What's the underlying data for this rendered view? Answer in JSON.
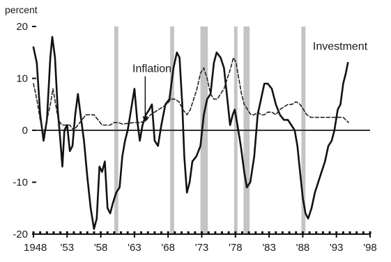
{
  "chart_data": {
    "type": "line",
    "ylabel": "percent",
    "ylim": [
      -20,
      20
    ],
    "yticks": [
      20,
      10,
      0,
      -10,
      -20
    ],
    "ytick_labels": [
      "20",
      "10",
      "0",
      "-10",
      "-20"
    ],
    "xlim": [
      1948,
      1998
    ],
    "xticks": [
      1948,
      1953,
      1958,
      1963,
      1968,
      1973,
      1978,
      1983,
      1988,
      1993,
      1998
    ],
    "xtick_labels": [
      "1948",
      "'53",
      "'58",
      "'63",
      "'68",
      "'73",
      "'78",
      "'83",
      "'88",
      "'93",
      "'98"
    ],
    "zero_line": true,
    "recession_bands": [
      [
        1960.0,
        1960.6
      ],
      [
        1968.3,
        1968.9
      ],
      [
        1972.8,
        1973.9
      ],
      [
        1977.8,
        1978.3
      ],
      [
        1979.2,
        1980.1
      ],
      [
        1987.8,
        1988.4
      ]
    ],
    "annotations": [
      {
        "text": "Inflation",
        "x": 1962.7,
        "y": 11.2,
        "arrow_to": [
          1964.6,
          1.6
        ]
      },
      {
        "text": "Investment",
        "x": 1989.5,
        "y": 15.5
      }
    ],
    "series": [
      {
        "name": "Investment",
        "color": "#111111",
        "style": "solid",
        "points": [
          [
            1948.0,
            16
          ],
          [
            1948.5,
            13
          ],
          [
            1949.0,
            3
          ],
          [
            1949.5,
            -2
          ],
          [
            1950.0,
            2
          ],
          [
            1950.5,
            14
          ],
          [
            1950.8,
            18
          ],
          [
            1951.2,
            14
          ],
          [
            1951.6,
            4
          ],
          [
            1952.0,
            -2
          ],
          [
            1952.3,
            -7
          ],
          [
            1952.6,
            0
          ],
          [
            1953.0,
            1
          ],
          [
            1953.4,
            -4
          ],
          [
            1953.8,
            -3
          ],
          [
            1954.2,
            3
          ],
          [
            1954.6,
            7
          ],
          [
            1955.0,
            3
          ],
          [
            1955.5,
            -2
          ],
          [
            1956.0,
            -9
          ],
          [
            1956.5,
            -15
          ],
          [
            1957.0,
            -19
          ],
          [
            1957.4,
            -17
          ],
          [
            1957.8,
            -7
          ],
          [
            1958.2,
            -8
          ],
          [
            1958.6,
            -6
          ],
          [
            1959.0,
            -15
          ],
          [
            1959.4,
            -16
          ],
          [
            1959.8,
            -14
          ],
          [
            1960.3,
            -12
          ],
          [
            1960.8,
            -11
          ],
          [
            1961.2,
            -5
          ],
          [
            1961.6,
            -2
          ],
          [
            1962.0,
            0
          ],
          [
            1962.5,
            4
          ],
          [
            1963.0,
            8
          ],
          [
            1963.4,
            2
          ],
          [
            1963.8,
            -2
          ],
          [
            1964.2,
            1
          ],
          [
            1964.7,
            3
          ],
          [
            1965.2,
            4
          ],
          [
            1965.6,
            5
          ],
          [
            1966.0,
            -2
          ],
          [
            1966.5,
            -3
          ],
          [
            1967.0,
            1
          ],
          [
            1967.6,
            5
          ],
          [
            1968.2,
            6
          ],
          [
            1968.8,
            12
          ],
          [
            1969.3,
            15
          ],
          [
            1969.7,
            14
          ],
          [
            1970.1,
            5
          ],
          [
            1970.4,
            -5
          ],
          [
            1970.8,
            -12
          ],
          [
            1971.2,
            -10
          ],
          [
            1971.6,
            -6
          ],
          [
            1972.2,
            -5
          ],
          [
            1972.8,
            -3
          ],
          [
            1973.3,
            3
          ],
          [
            1973.8,
            6
          ],
          [
            1974.3,
            7
          ],
          [
            1974.8,
            13
          ],
          [
            1975.2,
            15
          ],
          [
            1975.8,
            14
          ],
          [
            1976.3,
            12
          ],
          [
            1976.8,
            6
          ],
          [
            1977.2,
            1
          ],
          [
            1977.6,
            3
          ],
          [
            1977.9,
            4
          ],
          [
            1978.3,
            1
          ],
          [
            1978.8,
            -3
          ],
          [
            1979.3,
            -8
          ],
          [
            1979.7,
            -11
          ],
          [
            1980.2,
            -10
          ],
          [
            1980.8,
            -5
          ],
          [
            1981.3,
            3
          ],
          [
            1981.8,
            6
          ],
          [
            1982.3,
            9
          ],
          [
            1982.8,
            9
          ],
          [
            1983.4,
            8
          ],
          [
            1984.0,
            5
          ],
          [
            1984.6,
            3
          ],
          [
            1985.2,
            2
          ],
          [
            1985.8,
            2
          ],
          [
            1986.3,
            1
          ],
          [
            1986.8,
            0
          ],
          [
            1987.2,
            -3
          ],
          [
            1987.6,
            -8
          ],
          [
            1988.0,
            -13
          ],
          [
            1988.4,
            -16
          ],
          [
            1988.8,
            -17
          ],
          [
            1989.3,
            -15
          ],
          [
            1989.8,
            -12
          ],
          [
            1990.3,
            -10
          ],
          [
            1990.8,
            -8
          ],
          [
            1991.3,
            -6
          ],
          [
            1991.8,
            -3
          ],
          [
            1992.3,
            -2
          ],
          [
            1992.7,
            0
          ],
          [
            1993.2,
            4
          ],
          [
            1993.6,
            5
          ],
          [
            1994.0,
            9
          ],
          [
            1994.4,
            11
          ],
          [
            1994.7,
            13
          ]
        ]
      },
      {
        "name": "Inflation",
        "color": "#222222",
        "style": "dashed",
        "points": [
          [
            1948.0,
            9
          ],
          [
            1948.5,
            6
          ],
          [
            1949.0,
            2
          ],
          [
            1949.5,
            -1
          ],
          [
            1950.0,
            2
          ],
          [
            1950.5,
            5
          ],
          [
            1950.9,
            8
          ],
          [
            1951.3,
            5
          ],
          [
            1951.7,
            2
          ],
          [
            1952.2,
            1
          ],
          [
            1952.8,
            1
          ],
          [
            1953.4,
            1
          ],
          [
            1954.0,
            0
          ],
          [
            1954.6,
            1
          ],
          [
            1955.2,
            2
          ],
          [
            1955.8,
            3
          ],
          [
            1956.4,
            3
          ],
          [
            1957.0,
            3
          ],
          [
            1957.6,
            2
          ],
          [
            1958.2,
            1
          ],
          [
            1958.8,
            1
          ],
          [
            1959.4,
            1
          ],
          [
            1960.0,
            1.5
          ],
          [
            1960.6,
            1.5
          ],
          [
            1961.2,
            1.2
          ],
          [
            1961.8,
            1.3
          ],
          [
            1962.4,
            1.4
          ],
          [
            1963.0,
            1.5
          ],
          [
            1963.6,
            1.5
          ],
          [
            1964.2,
            1.6
          ],
          [
            1964.8,
            2
          ],
          [
            1965.4,
            3
          ],
          [
            1966.0,
            3.5
          ],
          [
            1966.6,
            4
          ],
          [
            1967.2,
            4.5
          ],
          [
            1967.8,
            5
          ],
          [
            1968.4,
            6
          ],
          [
            1969.0,
            6
          ],
          [
            1969.6,
            5.5
          ],
          [
            1970.2,
            4
          ],
          [
            1970.8,
            3
          ],
          [
            1971.3,
            4
          ],
          [
            1971.8,
            6
          ],
          [
            1972.3,
            8
          ],
          [
            1972.8,
            11
          ],
          [
            1973.3,
            12
          ],
          [
            1973.8,
            10
          ],
          [
            1974.3,
            7
          ],
          [
            1974.8,
            6
          ],
          [
            1975.3,
            6
          ],
          [
            1975.8,
            7
          ],
          [
            1976.3,
            8
          ],
          [
            1976.8,
            10
          ],
          [
            1977.3,
            12
          ],
          [
            1977.7,
            14
          ],
          [
            1978.1,
            13
          ],
          [
            1978.5,
            10
          ],
          [
            1978.9,
            7
          ],
          [
            1979.3,
            5
          ],
          [
            1979.8,
            4
          ],
          [
            1980.3,
            3
          ],
          [
            1980.8,
            3
          ],
          [
            1981.3,
            3.5
          ],
          [
            1981.8,
            3
          ],
          [
            1982.3,
            3
          ],
          [
            1982.8,
            3.5
          ],
          [
            1983.4,
            3.5
          ],
          [
            1984.0,
            3
          ],
          [
            1984.6,
            4
          ],
          [
            1985.2,
            4.5
          ],
          [
            1985.8,
            5
          ],
          [
            1986.4,
            5
          ],
          [
            1987.0,
            5.5
          ],
          [
            1987.6,
            5
          ],
          [
            1988.1,
            4
          ],
          [
            1988.6,
            3
          ],
          [
            1989.2,
            2.5
          ],
          [
            1989.8,
            2.5
          ],
          [
            1990.4,
            2.5
          ],
          [
            1991.0,
            2.5
          ],
          [
            1991.6,
            2.5
          ],
          [
            1992.2,
            2.5
          ],
          [
            1992.8,
            2.5
          ],
          [
            1993.4,
            2.5
          ],
          [
            1994.0,
            2.5
          ],
          [
            1994.4,
            2
          ],
          [
            1994.8,
            1.5
          ]
        ]
      }
    ]
  }
}
